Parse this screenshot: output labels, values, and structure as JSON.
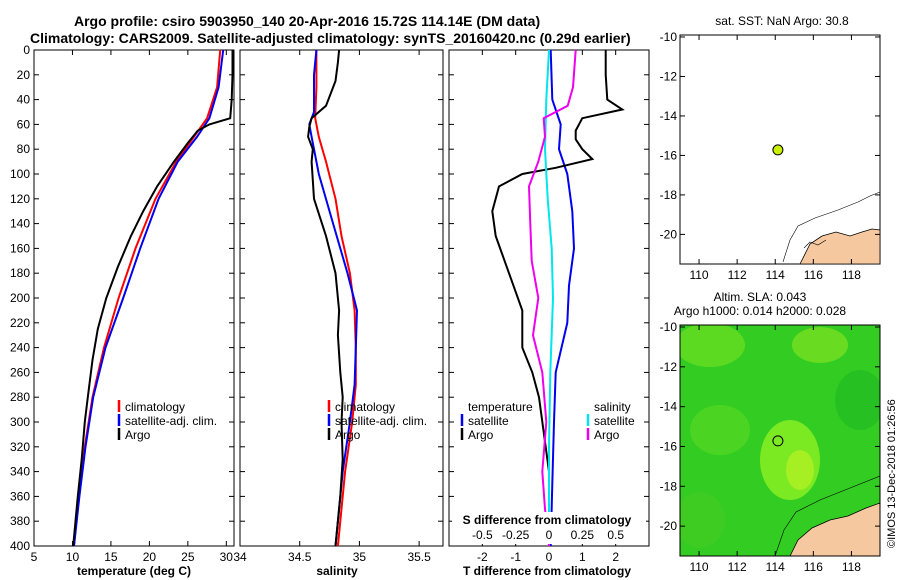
{
  "header": {
    "line1": "Argo profile: csiro 5903950_140 20-Apr-2016 15.72S 114.14E (DM data)",
    "line2": "Climatology: CARS2009. Satellite-adjusted climatology: synTS_20160420.nc (0.29d earlier)"
  },
  "stamp": "©IMOS 13-Dec-2018 01:26:56",
  "colors": {
    "climatology": "#ff0000",
    "satellite": "#0000ee",
    "argo": "#000000",
    "satellite_s": "#00e5ee",
    "argo_s": "#ee00ee",
    "land": "#f5c8a0"
  },
  "chart_data": [
    {
      "id": "temperature",
      "type": "line",
      "xlabel": "temperature (deg C)",
      "ylabel": "",
      "xlim": [
        5,
        31
      ],
      "ylim": [
        400,
        0
      ],
      "xticks": [
        "5",
        "10",
        "15",
        "20",
        "25",
        "30"
      ],
      "yticks": [
        "0",
        "20",
        "40",
        "60",
        "80",
        "100",
        "120",
        "140",
        "160",
        "180",
        "200",
        "220",
        "240",
        "260",
        "280",
        "300",
        "320",
        "340",
        "360",
        "380",
        "400"
      ],
      "legend": [
        "climatology",
        "satellite-adj. clim.",
        "Argo"
      ],
      "series": [
        {
          "name": "climatology",
          "color": "#ff0000",
          "depth": [
            0,
            30,
            55,
            70,
            90,
            120,
            160,
            200,
            240,
            280,
            320,
            360,
            400
          ],
          "values": [
            29.2,
            28.8,
            27.5,
            25.8,
            23.5,
            20.8,
            18.2,
            16.0,
            14.1,
            12.6,
            11.6,
            10.8,
            10.2
          ]
        },
        {
          "name": "satellite-adj. clim.",
          "color": "#0000ee",
          "depth": [
            0,
            30,
            55,
            70,
            90,
            120,
            160,
            200,
            240,
            280,
            320,
            360,
            400
          ],
          "values": [
            29.6,
            29.0,
            27.8,
            26.2,
            23.7,
            21.2,
            18.8,
            16.6,
            14.3,
            12.7,
            11.7,
            10.9,
            10.2
          ]
        },
        {
          "name": "Argo",
          "color": "#000000",
          "depth": [
            0,
            20,
            40,
            55,
            60,
            65,
            75,
            90,
            110,
            130,
            150,
            175,
            200,
            225,
            250,
            280,
            300,
            330,
            360,
            400
          ],
          "values": [
            30.8,
            30.8,
            30.7,
            30.5,
            27.8,
            26.3,
            25.0,
            23.2,
            21.0,
            19.2,
            17.6,
            15.9,
            14.4,
            13.3,
            12.6,
            12.0,
            11.6,
            11.2,
            10.7,
            10.1
          ]
        }
      ]
    },
    {
      "id": "salinity",
      "type": "line",
      "xlabel": "salinity",
      "ylabel": "",
      "xlim": [
        34,
        35.7
      ],
      "ylim": [
        400,
        0
      ],
      "xticks": [
        "34",
        "34.5",
        "35",
        "35.5"
      ],
      "legend": [
        "climatology",
        "satellite-adj. clim.",
        "Argo"
      ],
      "series": [
        {
          "name": "climatology",
          "color": "#ff0000",
          "depth": [
            0,
            30,
            55,
            70,
            90,
            120,
            150,
            180,
            210,
            240,
            270,
            300,
            340,
            400
          ],
          "values": [
            34.64,
            34.64,
            34.63,
            34.66,
            34.72,
            34.8,
            34.85,
            34.92,
            34.96,
            34.97,
            34.97,
            34.94,
            34.88,
            34.82
          ]
        },
        {
          "name": "satellite-adj. clim.",
          "color": "#0000ee",
          "depth": [
            0,
            20,
            50,
            60,
            70,
            100,
            140,
            180,
            210,
            240,
            270,
            300,
            340,
            400
          ],
          "values": [
            34.64,
            34.62,
            34.62,
            34.58,
            34.6,
            34.66,
            34.78,
            34.9,
            34.98,
            34.97,
            34.96,
            34.92,
            34.86,
            34.8
          ]
        },
        {
          "name": "Argo",
          "color": "#000000",
          "depth": [
            0,
            10,
            25,
            45,
            55,
            62,
            70,
            80,
            90,
            120,
            150,
            180,
            210,
            230,
            260,
            280,
            300,
            330,
            360,
            400
          ],
          "values": [
            34.83,
            34.82,
            34.8,
            34.72,
            34.6,
            34.58,
            34.57,
            34.61,
            34.6,
            34.62,
            34.72,
            34.8,
            34.83,
            34.82,
            34.84,
            34.86,
            34.85,
            34.86,
            34.84,
            34.8
          ]
        }
      ]
    },
    {
      "id": "difference",
      "type": "line",
      "xlabel": "T difference from climatology",
      "ylabel": "",
      "x2label": "S difference from climatology",
      "xlim": [
        -3,
        3
      ],
      "ylim": [
        400,
        0
      ],
      "xticks": [
        "-2",
        "-1",
        "0",
        "1",
        "2"
      ],
      "x2ticks": [
        "-0.5",
        "-0.25",
        "0",
        "0.25",
        "0.5"
      ],
      "legend_left": {
        "title": "temperature",
        "items": [
          "satellite",
          "Argo"
        ]
      },
      "legend_right": {
        "title": "salinity",
        "items": [
          "satellite",
          "Argo"
        ]
      },
      "series": [
        {
          "name": "T satellite",
          "color": "#0000ee",
          "depth": [
            0,
            40,
            60,
            80,
            100,
            130,
            160,
            190,
            220,
            260,
            300,
            350,
            400
          ],
          "values": [
            0.05,
            0.1,
            0.35,
            0.3,
            0.55,
            0.7,
            0.75,
            0.6,
            0.55,
            0.2,
            0.15,
            0.1,
            0.05
          ]
        },
        {
          "name": "T Argo",
          "color": "#000000",
          "depth": [
            0,
            20,
            40,
            48,
            55,
            65,
            72,
            80,
            88,
            95,
            100,
            110,
            130,
            150,
            180,
            210,
            240,
            260,
            280,
            310,
            340,
            370,
            400
          ],
          "values": [
            1.7,
            1.7,
            1.75,
            2.2,
            1.0,
            0.8,
            0.8,
            1.0,
            1.3,
            0.2,
            -0.8,
            -1.5,
            -1.7,
            -1.6,
            -1.2,
            -0.8,
            -0.8,
            -0.5,
            -0.3,
            -0.15,
            0.0,
            0.0,
            0.0
          ]
        },
        {
          "name": "S satellite",
          "color": "#00e5ee",
          "depth": [
            0,
            40,
            80,
            120,
            160,
            200,
            260,
            320,
            400
          ],
          "values": [
            0.0,
            -0.02,
            -0.03,
            -0.01,
            0.02,
            0.03,
            0.01,
            0.0,
            0.0
          ]
        },
        {
          "name": "S Argo",
          "color": "#ee00ee",
          "depth": [
            0,
            30,
            45,
            55,
            70,
            90,
            110,
            140,
            170,
            200,
            230,
            260,
            300,
            340,
            370,
            400
          ],
          "values": [
            0.2,
            0.18,
            0.14,
            -0.04,
            -0.03,
            -0.08,
            -0.15,
            -0.14,
            -0.13,
            -0.08,
            -0.12,
            -0.05,
            -0.02,
            -0.05,
            -0.03,
            0.0
          ]
        }
      ]
    },
    {
      "id": "sst-map",
      "type": "scatter",
      "title": "sat. SST: NaN Argo: 30.8",
      "xlim": [
        109,
        119.5
      ],
      "ylim": [
        -21.5,
        -9.9
      ],
      "xticks": [
        "110",
        "112",
        "114",
        "116",
        "118"
      ],
      "yticks": [
        "-10",
        "-12",
        "-14",
        "-16",
        "-18",
        "-20"
      ],
      "points": [
        {
          "x": 114.14,
          "y": -15.72
        }
      ]
    },
    {
      "id": "sla-map",
      "type": "heatmap",
      "title": "Altim. SLA: 0.043",
      "subtitle": "Argo h1000: 0.014 h2000: 0.028",
      "xlim": [
        109,
        119.5
      ],
      "ylim": [
        -21.5,
        -9.9
      ],
      "xticks": [
        "110",
        "112",
        "114",
        "116",
        "118"
      ],
      "yticks": [
        "-10",
        "-12",
        "-14",
        "-16",
        "-18",
        "-20"
      ],
      "points": [
        {
          "x": 114.14,
          "y": -15.72
        }
      ]
    }
  ]
}
